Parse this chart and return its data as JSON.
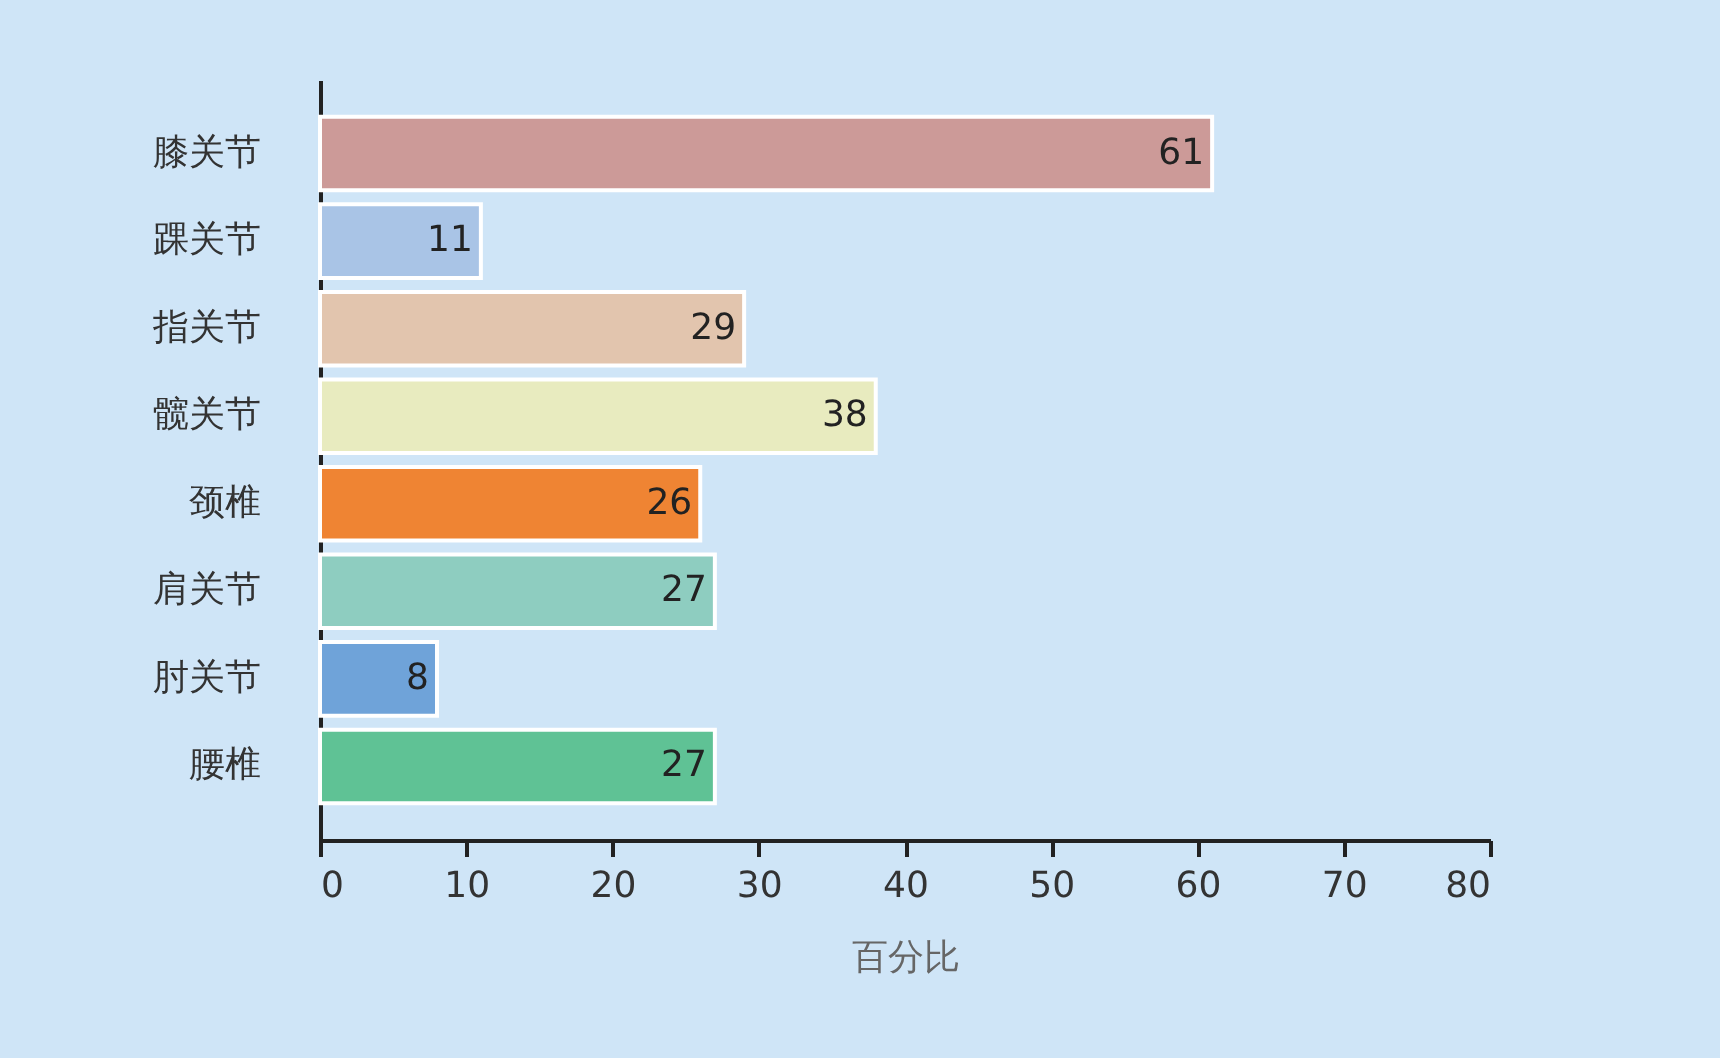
{
  "chart_data": {
    "type": "bar",
    "orientation": "horizontal",
    "xlabel": "百分比",
    "categories": [
      "膝关节",
      "踝关节",
      "指关节",
      "髋关节",
      "颈椎",
      "肩关节",
      "肘关节",
      "腰椎"
    ],
    "values": [
      61,
      11,
      29,
      38,
      26,
      27,
      8,
      27
    ],
    "colors": [
      "#cc9a98",
      "#a9c4e6",
      "#e2c5ae",
      "#e8ebbf",
      "#ef8433",
      "#8ecdc0",
      "#6fa3d9",
      "#5fc295"
    ],
    "xlim": [
      0,
      80
    ],
    "xticks": [
      0,
      10,
      20,
      30,
      40,
      50,
      60,
      70,
      80
    ],
    "data_labels": true,
    "grid": false,
    "legend": false
  }
}
